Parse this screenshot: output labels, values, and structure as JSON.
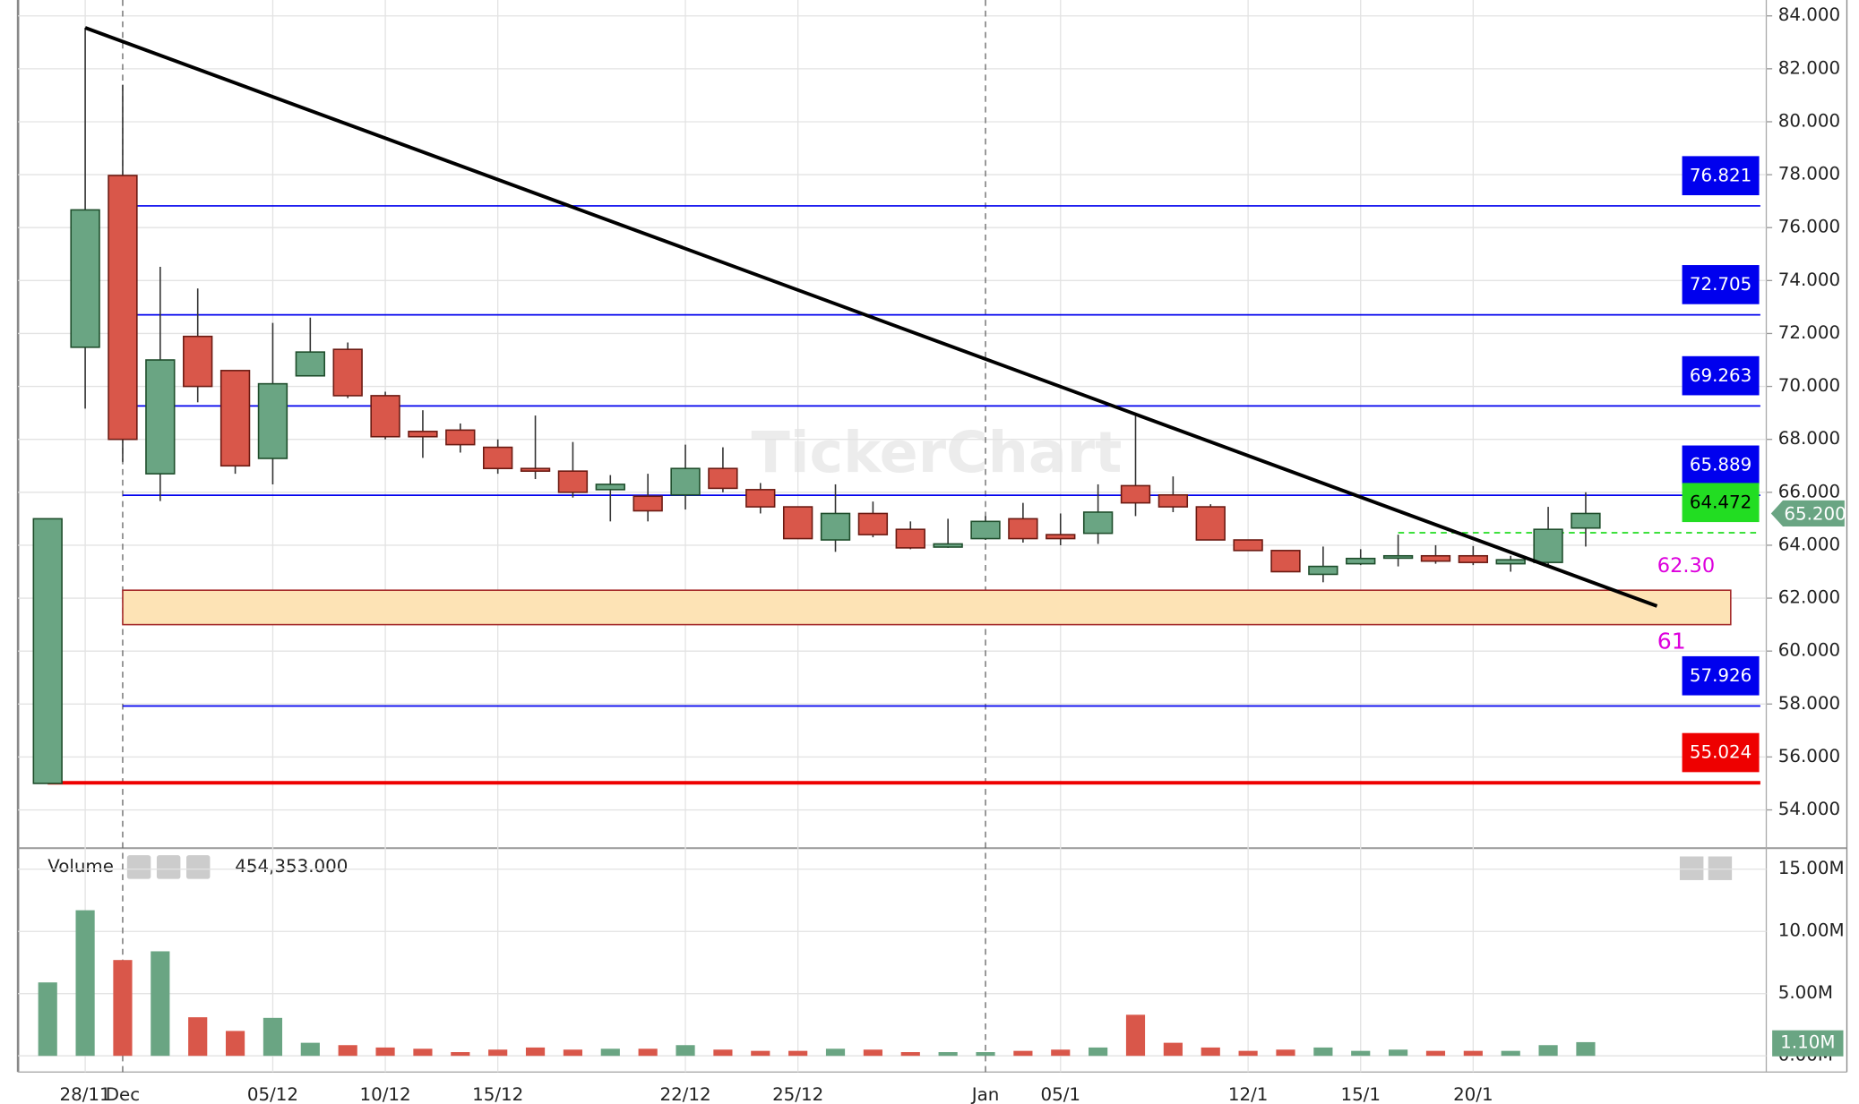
{
  "chart_data": {
    "type": "candlestick",
    "watermark": "TickerChart",
    "categories": [
      null,
      "28/11",
      "Dec",
      null,
      null,
      null,
      "05/12",
      null,
      null,
      "10/12",
      null,
      null,
      "15/12",
      null,
      null,
      null,
      null,
      "22/12",
      null,
      null,
      "25/12",
      null,
      null,
      null,
      null,
      "Jan",
      null,
      "05/1",
      null,
      null,
      null,
      null,
      "12/1",
      null,
      null,
      "15/1",
      null,
      null,
      "20/1",
      null,
      null,
      null
    ],
    "open": [
      55.0,
      71.48,
      77.97,
      66.7,
      71.89,
      70.6,
      67.28,
      70.4,
      71.4,
      69.65,
      68.3,
      68.35,
      67.7,
      66.9,
      66.8,
      66.1,
      65.85,
      65.9,
      66.9,
      66.1,
      65.45,
      64.2,
      65.2,
      64.6,
      63.93,
      64.25,
      65.0,
      64.4,
      64.45,
      66.25,
      65.9,
      65.45,
      64.2,
      63.8,
      62.9,
      63.3,
      63.53,
      63.6,
      63.6,
      63.3,
      63.35,
      64.65
    ],
    "high": [
      65.0,
      83.55,
      81.4,
      74.52,
      73.7,
      70.6,
      72.4,
      72.6,
      71.66,
      69.8,
      69.1,
      68.6,
      68.0,
      68.9,
      67.9,
      66.65,
      66.7,
      67.8,
      67.7,
      66.35,
      65.45,
      66.3,
      65.65,
      64.9,
      65.0,
      65.1,
      65.6,
      65.2,
      66.3,
      69.0,
      66.6,
      65.55,
      64.2,
      63.8,
      63.95,
      63.85,
      64.4,
      64.0,
      63.97,
      63.6,
      65.45,
      66.0
    ],
    "low": [
      55.0,
      69.16,
      67.15,
      65.67,
      69.4,
      66.7,
      66.3,
      70.4,
      69.56,
      68.0,
      67.3,
      67.5,
      66.7,
      66.5,
      65.8,
      64.9,
      64.9,
      65.35,
      66.0,
      65.2,
      64.25,
      63.75,
      64.3,
      63.85,
      63.9,
      64.2,
      64.1,
      64.0,
      64.05,
      65.1,
      65.25,
      64.2,
      63.8,
      63.0,
      62.6,
      63.25,
      63.2,
      63.3,
      63.25,
      63.0,
      63.2,
      63.95
    ],
    "close": [
      65.0,
      76.67,
      68.0,
      71.0,
      70.0,
      67.0,
      70.1,
      71.3,
      69.65,
      68.1,
      68.1,
      67.8,
      66.9,
      66.8,
      66.0,
      66.3,
      65.3,
      66.9,
      66.15,
      65.45,
      64.25,
      65.2,
      64.4,
      63.9,
      64.05,
      64.9,
      64.25,
      64.25,
      65.25,
      65.6,
      65.45,
      64.2,
      63.8,
      63.0,
      63.2,
      63.5,
      63.6,
      63.4,
      63.35,
      63.45,
      64.6,
      65.2
    ],
    "colors": {
      "up": "#6aa583",
      "down": "#d9574a"
    },
    "ylim": [
      52.6,
      84.6
    ],
    "yticks": [
      {
        "value": 54,
        "label": "54.000"
      },
      {
        "value": 56,
        "label": "56.000"
      },
      {
        "value": 58,
        "label": "58.000"
      },
      {
        "value": 60,
        "label": "60.000"
      },
      {
        "value": 62,
        "label": "62.000"
      },
      {
        "value": 64,
        "label": "64.000"
      },
      {
        "value": 66,
        "label": "66.000"
      },
      {
        "value": 68,
        "label": "68.000"
      },
      {
        "value": 70,
        "label": "70.000"
      },
      {
        "value": 72,
        "label": "72.000"
      },
      {
        "value": 74,
        "label": "74.000"
      },
      {
        "value": 76,
        "label": "76.000"
      },
      {
        "value": 78,
        "label": "78.000"
      },
      {
        "value": 80,
        "label": "80.000"
      },
      {
        "value": 82,
        "label": "82.000"
      },
      {
        "value": 84,
        "label": "84.000"
      }
    ],
    "levels": [
      {
        "value": 76.821,
        "color": "#0000ee"
      },
      {
        "value": 72.705,
        "color": "#0000ee"
      },
      {
        "value": 69.263,
        "color": "#0000ee"
      },
      {
        "value": 65.889,
        "color": "#0000ee"
      },
      {
        "value": 64.472,
        "color": "#22dd22"
      },
      {
        "value": 57.926,
        "color": "#0000ee"
      },
      {
        "value": 55.024,
        "color": "#ee0000"
      }
    ],
    "last_price": {
      "value": 65.2,
      "label": "65.200"
    },
    "trendline": {
      "x": [
        1,
        42.9
      ],
      "y": [
        83.55,
        61.7
      ]
    },
    "zone": {
      "values": [
        62.3,
        61
      ],
      "value_labels": [
        "62.30",
        null
      ]
    },
    "volume": {
      "title": "Volume",
      "readout": "454,353.000",
      "values": [
        5.9,
        11.7,
        7.7,
        8.4,
        3.1,
        2.0,
        3.05,
        1.05,
        0.86,
        0.67,
        0.57,
        0.3,
        0.5,
        0.67,
        0.5,
        0.57,
        0.57,
        0.86,
        0.5,
        0.4,
        0.4,
        0.57,
        0.5,
        0.3,
        0.3,
        0.3,
        0.4,
        0.5,
        0.67,
        3.3,
        1.05,
        0.67,
        0.4,
        0.5,
        0.67,
        0.4,
        0.5,
        0.4,
        0.4,
        0.4,
        0.86,
        1.1
      ],
      "value_labels": [
        null,
        null,
        null,
        null,
        null,
        null,
        null,
        null,
        null,
        null,
        null,
        null,
        null,
        null,
        null,
        null,
        null,
        null,
        null,
        null,
        null,
        null,
        null,
        null,
        null,
        null,
        null,
        null,
        null,
        null,
        null,
        null,
        null,
        null,
        null,
        null,
        null,
        null,
        null,
        null,
        null,
        "1.10M"
      ],
      "ylim": [
        -1.3,
        16.5
      ],
      "yticks": [
        {
          "value": 0,
          "label": "0.00M"
        },
        {
          "value": 5,
          "label": "5.00M"
        },
        {
          "value": 10,
          "label": "10.00M"
        },
        {
          "value": 15,
          "label": "15.00M"
        }
      ]
    }
  }
}
